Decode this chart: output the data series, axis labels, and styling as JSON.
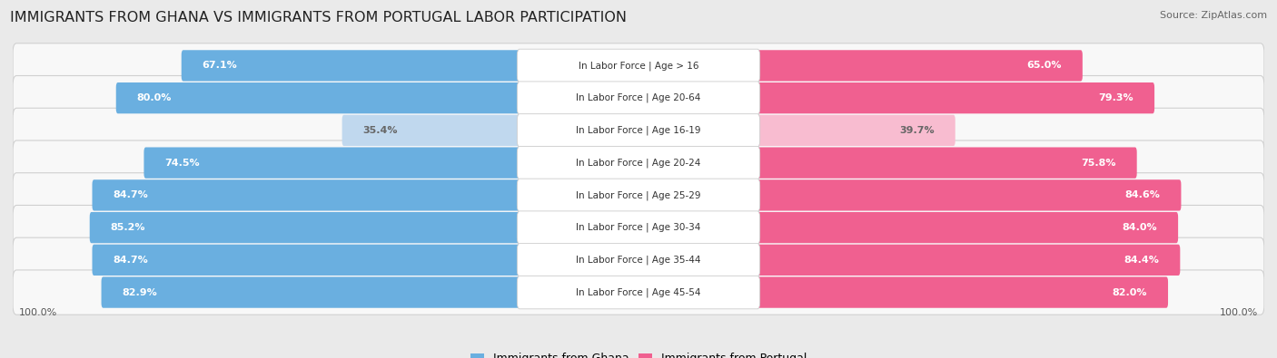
{
  "title": "IMMIGRANTS FROM GHANA VS IMMIGRANTS FROM PORTUGAL LABOR PARTICIPATION",
  "source": "Source: ZipAtlas.com",
  "categories": [
    "In Labor Force | Age > 16",
    "In Labor Force | Age 20-64",
    "In Labor Force | Age 16-19",
    "In Labor Force | Age 20-24",
    "In Labor Force | Age 25-29",
    "In Labor Force | Age 30-34",
    "In Labor Force | Age 35-44",
    "In Labor Force | Age 45-54"
  ],
  "ghana_values": [
    67.1,
    80.0,
    35.4,
    74.5,
    84.7,
    85.2,
    84.7,
    82.9
  ],
  "portugal_values": [
    65.0,
    79.3,
    39.7,
    75.8,
    84.6,
    84.0,
    84.4,
    82.0
  ],
  "ghana_color": "#6aafe0",
  "ghana_light_color": "#c0d8ee",
  "portugal_color": "#f06090",
  "portugal_light_color": "#f8bcd0",
  "background_color": "#eaeaea",
  "row_bg_color": "#f8f8f8",
  "row_border_color": "#d0d0d0",
  "center_label_bg": "#ffffff",
  "center_label_border": "#cccccc",
  "max_value": 100.0,
  "legend_ghana": "Immigrants from Ghana",
  "legend_portugal": "Immigrants from Portugal",
  "title_fontsize": 11.5,
  "source_fontsize": 8,
  "value_fontsize": 8,
  "category_fontsize": 7.5,
  "axis_label_fontsize": 8
}
